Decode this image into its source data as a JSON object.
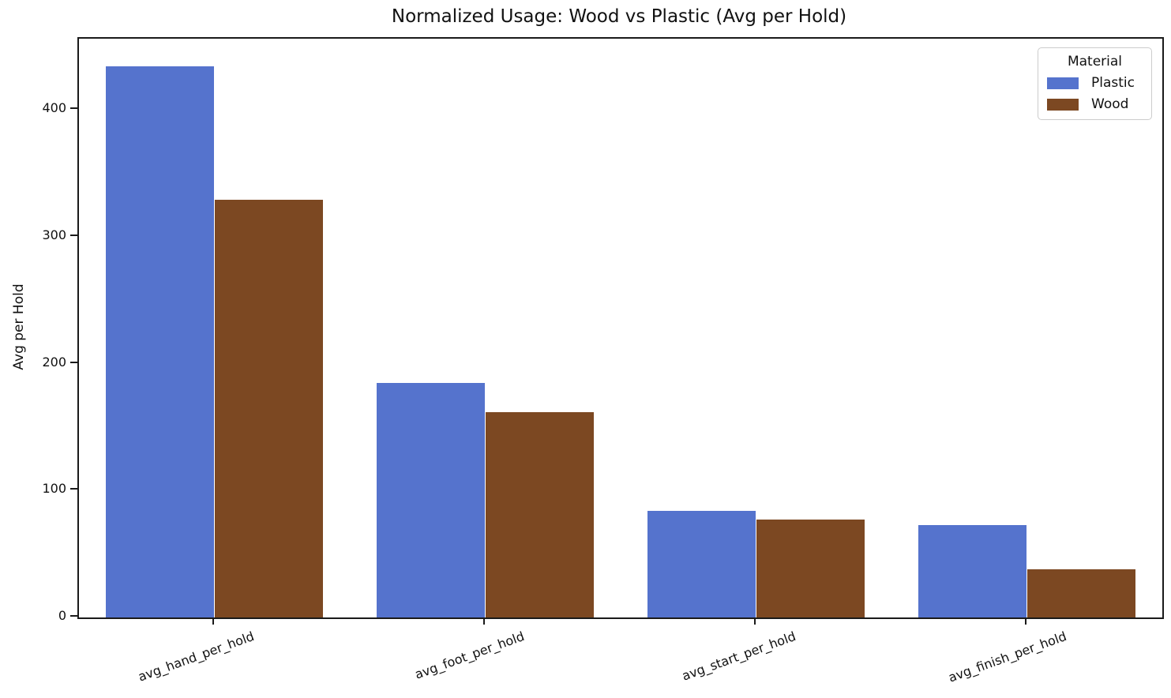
{
  "chart_data": {
    "type": "bar",
    "title": "Normalized Usage: Wood vs Plastic (Avg per Hold)",
    "xlabel": "",
    "ylabel": "Avg per Hold",
    "categories": [
      "avg_hand_per_hold",
      "avg_foot_per_hold",
      "avg_start_per_hold",
      "avg_finish_per_hold"
    ],
    "series": [
      {
        "name": "Plastic",
        "color": "#5573CD",
        "values": [
          434,
          185,
          84,
          73
        ]
      },
      {
        "name": "Wood",
        "color": "#7C4822",
        "values": [
          329,
          162,
          77,
          38
        ]
      }
    ],
    "ylim": [
      0,
      456
    ],
    "yticks": [
      0,
      100,
      200,
      300,
      400
    ],
    "grid": false,
    "legend": {
      "title": "Material",
      "position": "upper right"
    },
    "xtick_rotation_deg": 20,
    "axis_color": "#1a1a1a",
    "background_color": "#ffffff"
  }
}
